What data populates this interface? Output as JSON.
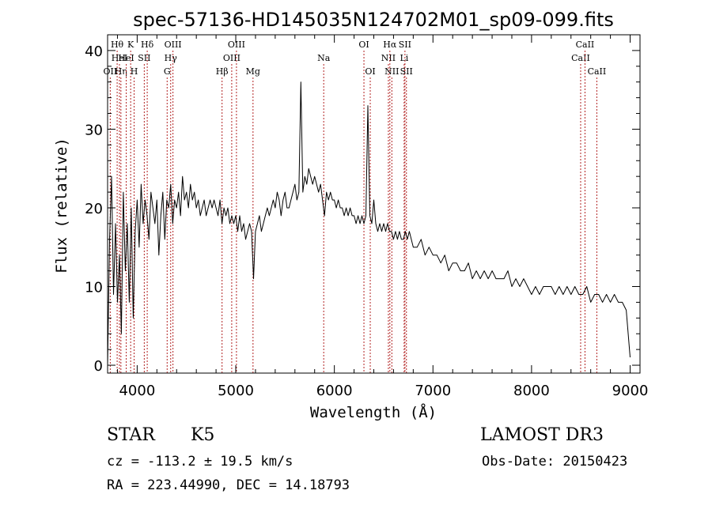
{
  "chart_data": {
    "type": "line",
    "title": "spec-57136-HD145035N124702M01_sp09-099.fits",
    "xlabel": "Wavelength (Å)",
    "ylabel": "Flux (relative)",
    "xlim": [
      3700,
      9100
    ],
    "ylim": [
      -1,
      42
    ],
    "x_ticks": [
      4000,
      5000,
      6000,
      7000,
      8000,
      9000
    ],
    "y_ticks": [
      0,
      10,
      20,
      30,
      40
    ],
    "x_tick_labels": [
      "4000",
      "5000",
      "6000",
      "7000",
      "8000",
      "9000"
    ],
    "y_tick_labels": [
      "0",
      "10",
      "20",
      "30",
      "40"
    ],
    "series": [
      {
        "name": "flux",
        "x": [
          3700,
          3720,
          3740,
          3760,
          3780,
          3800,
          3820,
          3840,
          3860,
          3880,
          3900,
          3920,
          3940,
          3960,
          3980,
          4000,
          4020,
          4040,
          4060,
          4080,
          4100,
          4120,
          4140,
          4160,
          4180,
          4200,
          4220,
          4240,
          4260,
          4280,
          4300,
          4320,
          4340,
          4360,
          4380,
          4400,
          4420,
          4440,
          4460,
          4480,
          4500,
          4520,
          4540,
          4560,
          4580,
          4600,
          4620,
          4640,
          4660,
          4680,
          4700,
          4720,
          4740,
          4760,
          4780,
          4800,
          4820,
          4840,
          4860,
          4880,
          4900,
          4920,
          4940,
          4960,
          4980,
          5000,
          5020,
          5040,
          5060,
          5080,
          5100,
          5120,
          5140,
          5160,
          5180,
          5200,
          5220,
          5240,
          5260,
          5280,
          5300,
          5320,
          5340,
          5360,
          5380,
          5400,
          5420,
          5440,
          5460,
          5480,
          5500,
          5520,
          5540,
          5560,
          5580,
          5600,
          5620,
          5640,
          5660,
          5680,
          5700,
          5720,
          5740,
          5760,
          5780,
          5800,
          5820,
          5840,
          5860,
          5880,
          5900,
          5920,
          5940,
          5960,
          5980,
          6000,
          6020,
          6040,
          6060,
          6080,
          6100,
          6120,
          6140,
          6160,
          6180,
          6200,
          6220,
          6240,
          6260,
          6280,
          6300,
          6320,
          6340,
          6360,
          6380,
          6400,
          6420,
          6440,
          6460,
          6480,
          6500,
          6520,
          6540,
          6560,
          6580,
          6600,
          6620,
          6640,
          6660,
          6680,
          6700,
          6720,
          6740,
          6760,
          6780,
          6800,
          6840,
          6880,
          6920,
          6960,
          7000,
          7040,
          7080,
          7120,
          7160,
          7200,
          7240,
          7280,
          7320,
          7360,
          7400,
          7440,
          7480,
          7520,
          7560,
          7600,
          7640,
          7680,
          7720,
          7760,
          7800,
          7840,
          7880,
          7920,
          7960,
          8000,
          8040,
          8080,
          8120,
          8160,
          8200,
          8240,
          8280,
          8320,
          8360,
          8400,
          8440,
          8480,
          8520,
          8560,
          8600,
          8640,
          8680,
          8720,
          8760,
          8800,
          8840,
          8880,
          8920,
          8960,
          9000
        ],
        "y": [
          0,
          16,
          24,
          9,
          18,
          8,
          14,
          4,
          22,
          12,
          18,
          8,
          20,
          6,
          17,
          21,
          15,
          23,
          18,
          21,
          19,
          16,
          22,
          20,
          18,
          21,
          14,
          19,
          22,
          16,
          21,
          20,
          23,
          18,
          21,
          20,
          22,
          19,
          24,
          21,
          22,
          20,
          23,
          21,
          22,
          20,
          21,
          19,
          20,
          21,
          19,
          20,
          21,
          20,
          21,
          20,
          19,
          21,
          18,
          20,
          19,
          20,
          18,
          19,
          18,
          19,
          17,
          19,
          17,
          18,
          16,
          17,
          18,
          17,
          11,
          17,
          18,
          19,
          17,
          18,
          19,
          20,
          19,
          20,
          21,
          20,
          22,
          21,
          19,
          21,
          22,
          20,
          20,
          21,
          22,
          23,
          21,
          22,
          36,
          22,
          24,
          23,
          25,
          24,
          23,
          24,
          23,
          22,
          23,
          21,
          19,
          22,
          21,
          22,
          21,
          21,
          20,
          21,
          20,
          20,
          19,
          20,
          19,
          20,
          19,
          19,
          18,
          19,
          18,
          19,
          18,
          19,
          33,
          19,
          18,
          21,
          18,
          17,
          18,
          17,
          18,
          17,
          18,
          17,
          17,
          16,
          17,
          16,
          17,
          16,
          16,
          17,
          16,
          17,
          16,
          15,
          15,
          16,
          14,
          15,
          14,
          14,
          13,
          14,
          12,
          13,
          13,
          12,
          12,
          13,
          11,
          12,
          11,
          12,
          11,
          12,
          11,
          11,
          11,
          12,
          10,
          11,
          10,
          11,
          10,
          9,
          10,
          9,
          10,
          10,
          10,
          9,
          10,
          9,
          10,
          9,
          10,
          9,
          9,
          10,
          8,
          9,
          9,
          8,
          9,
          8,
          9,
          8,
          8,
          7,
          1
        ]
      }
    ],
    "line_markers": [
      {
        "wl": 3727,
        "label": "OII",
        "row": 3
      },
      {
        "wl": 3797,
        "label": "Hθ",
        "row": 1
      },
      {
        "wl": 3820,
        "label": "HeI",
        "row": 2
      },
      {
        "wl": 3835,
        "label": "Hη",
        "row": 3
      },
      {
        "wl": 3889,
        "label": "HeI",
        "row": 2
      },
      {
        "wl": 3934,
        "label": "K",
        "row": 1
      },
      {
        "wl": 3969,
        "label": "H",
        "row": 3
      },
      {
        "wl": 4072,
        "label": "SII",
        "row": 2
      },
      {
        "wl": 4102,
        "label": "Hδ",
        "row": 1
      },
      {
        "wl": 4304,
        "label": "G",
        "row": 3
      },
      {
        "wl": 4340,
        "label": "Hγ",
        "row": 2
      },
      {
        "wl": 4363,
        "label": "OIII",
        "row": 1
      },
      {
        "wl": 4861,
        "label": "Hβ",
        "row": 3
      },
      {
        "wl": 4959,
        "label": "OIII",
        "row": 2
      },
      {
        "wl": 5007,
        "label": "OIII",
        "row": 1
      },
      {
        "wl": 5175,
        "label": "Mg",
        "row": 3
      },
      {
        "wl": 5892,
        "label": "Na",
        "row": 2
      },
      {
        "wl": 6300,
        "label": "OI",
        "row": 1
      },
      {
        "wl": 6364,
        "label": "OI",
        "row": 3
      },
      {
        "wl": 6548,
        "label": "NII",
        "row": 2
      },
      {
        "wl": 6563,
        "label": "Hα",
        "row": 1
      },
      {
        "wl": 6583,
        "label": "NII",
        "row": 3
      },
      {
        "wl": 6708,
        "label": "Li",
        "row": 2
      },
      {
        "wl": 6716,
        "label": "SII",
        "row": 1
      },
      {
        "wl": 6731,
        "label": "SII",
        "row": 3
      },
      {
        "wl": 8498,
        "label": "CaII",
        "row": 2
      },
      {
        "wl": 8542,
        "label": "CaII",
        "row": 1
      },
      {
        "wl": 8662,
        "label": "CaII",
        "row": 3
      }
    ],
    "grid": false,
    "colors": {
      "line": "#000000",
      "markers": "#b22222"
    }
  },
  "info": {
    "class": "STAR",
    "subclass": "K5",
    "survey": "LAMOST DR3",
    "cz": "cz = -113.2 ± 19.5 km/s",
    "obs_date": "Obs-Date: 20150423",
    "coords": "RA = 223.44990, DEC =  14.18793"
  }
}
